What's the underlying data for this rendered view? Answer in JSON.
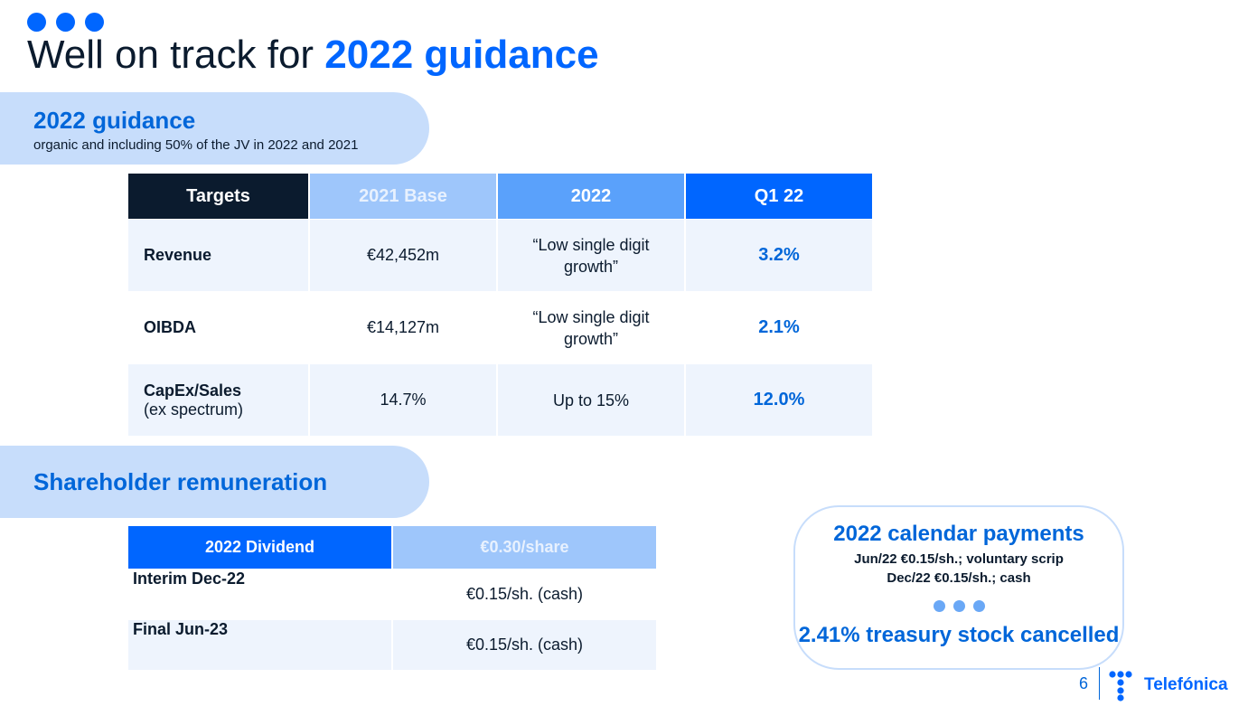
{
  "title": {
    "prefix": "Well on track for ",
    "accent": "2022 guidance"
  },
  "guidance": {
    "heading": "2022 guidance",
    "subheading": "organic and including 50% of the JV in 2022 and 2021",
    "columns": [
      "Targets",
      "2021 Base",
      "2022",
      "Q1 22"
    ],
    "rows": [
      {
        "label": "Revenue",
        "sublabel": "",
        "base": "€42,452m",
        "target_line1": "“Low single digit",
        "target_line2": "growth”",
        "q1": "3.2%"
      },
      {
        "label": "OIBDA",
        "sublabel": "",
        "base": "€14,127m",
        "target_line1": "“Low single digit",
        "target_line2": "growth”",
        "q1": "2.1%"
      },
      {
        "label": "CapEx/Sales",
        "sublabel": "(ex spectrum)",
        "base": "14.7%",
        "target_line1": "Up to 15%",
        "target_line2": "",
        "q1": "12.0%"
      }
    ]
  },
  "shareholder": {
    "heading": "Shareholder remuneration",
    "columns": [
      "2022 Dividend",
      "€0.30/share"
    ],
    "rows": [
      {
        "label": "Interim Dec-22",
        "value": "€0.15/sh. (cash)"
      },
      {
        "label": "Final Jun-23",
        "value": "€0.15/sh. (cash)"
      }
    ]
  },
  "callout": {
    "title": "2022 calendar payments",
    "line1": "Jun/22 €0.15/sh.; voluntary scrip",
    "line2": "Dec/22 €0.15/sh.; cash",
    "bottom": "2.41% treasury stock cancelled"
  },
  "footer": {
    "page_number": "6",
    "brand": "Telefónica"
  },
  "colors": {
    "accent": "#0066ff",
    "accent_text": "#0066d9",
    "band": "#c7ddfb",
    "dark": "#0b1b2e"
  },
  "icons": {
    "title_dots": "three-dots-icon",
    "callout_dots": "three-dots-icon",
    "logo": "telefonica-logo-icon"
  }
}
